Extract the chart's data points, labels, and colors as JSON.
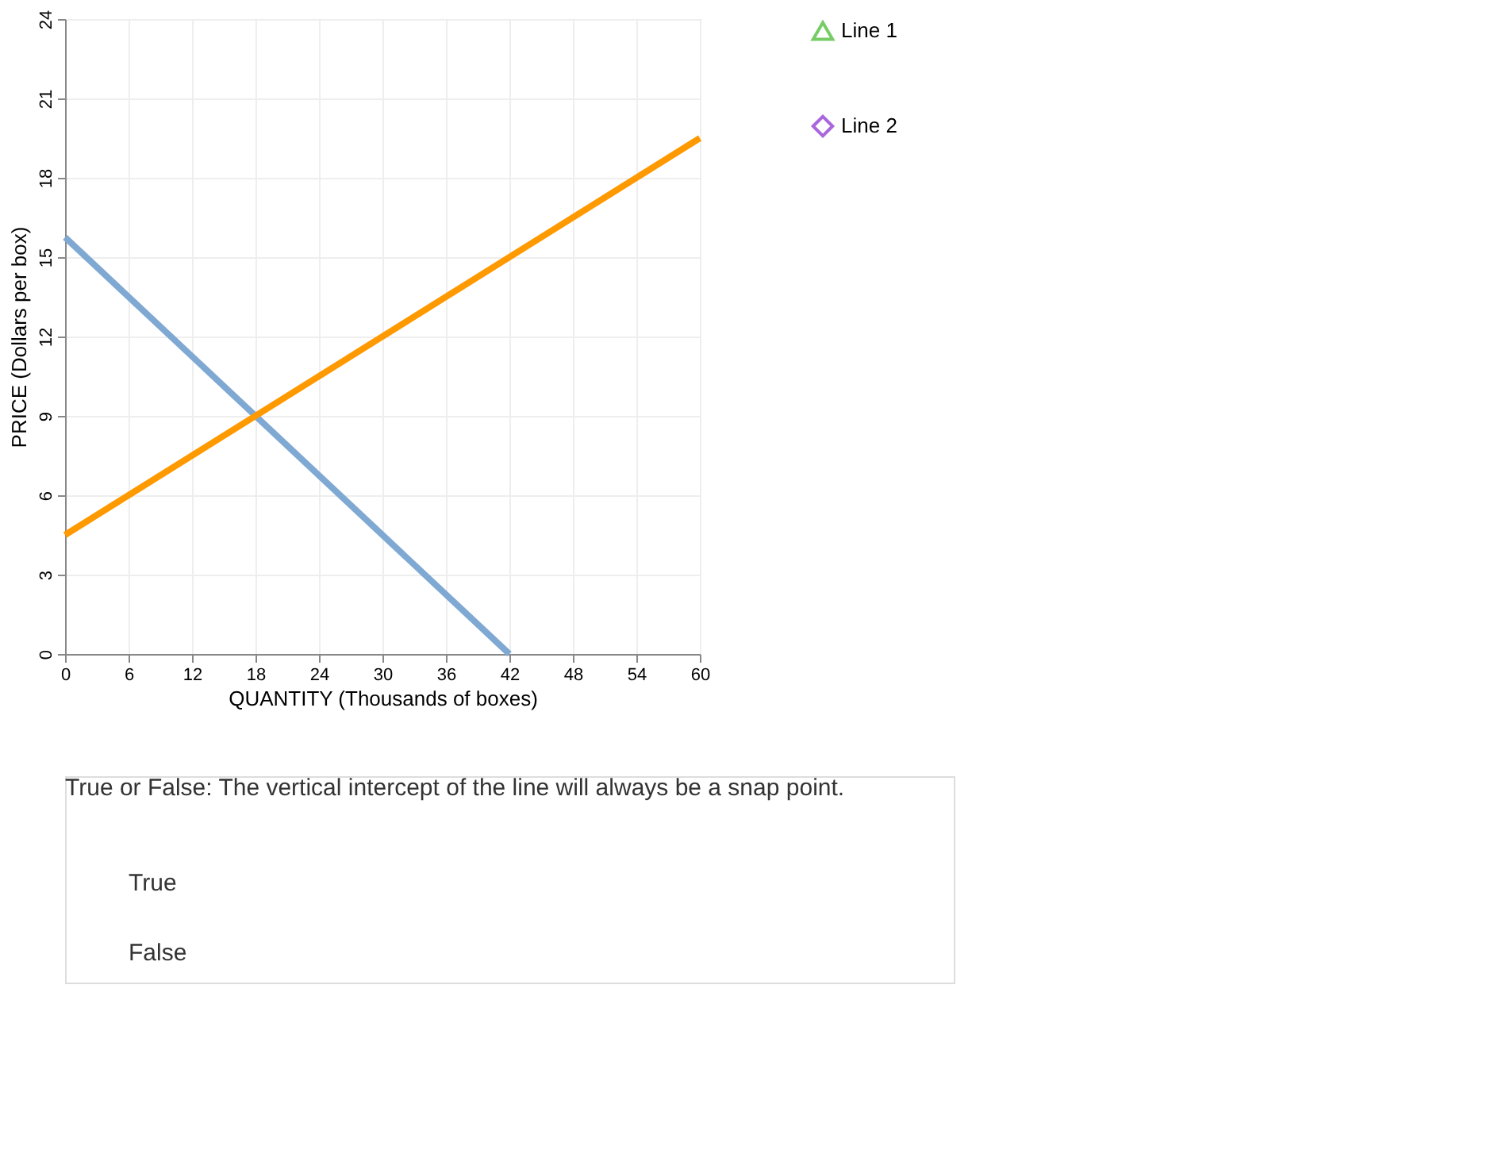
{
  "chart_data": {
    "type": "line",
    "xlabel": "QUANTITY (Thousands of boxes)",
    "ylabel": "PRICE (Dollars per box)",
    "xlim": [
      0,
      60
    ],
    "ylim": [
      0,
      24
    ],
    "xticks": [
      0,
      6,
      12,
      18,
      24,
      30,
      36,
      42,
      48,
      54,
      60
    ],
    "yticks": [
      0,
      3,
      6,
      9,
      12,
      15,
      18,
      21,
      24
    ],
    "grid": true,
    "legend": "right",
    "marker": "none",
    "series": [
      {
        "color": "#7fa9d3",
        "x": [
          0,
          42
        ],
        "values": [
          15.75,
          0
        ]
      },
      {
        "color": "#ff9900",
        "x": [
          0,
          60
        ],
        "values": [
          4.5,
          19.5
        ]
      },
      {
        "name": "Line 1",
        "color": "#77cc66",
        "marker": "triangle",
        "values": [
          null
        ]
      },
      {
        "name": "Line 2",
        "color": "#aa66dd",
        "marker": "diamond",
        "values": [
          null
        ]
      }
    ],
    "annotations": [
      "True or False: The vertical intercept of the line will always be a snap point.",
      "True",
      "False"
    ]
  }
}
